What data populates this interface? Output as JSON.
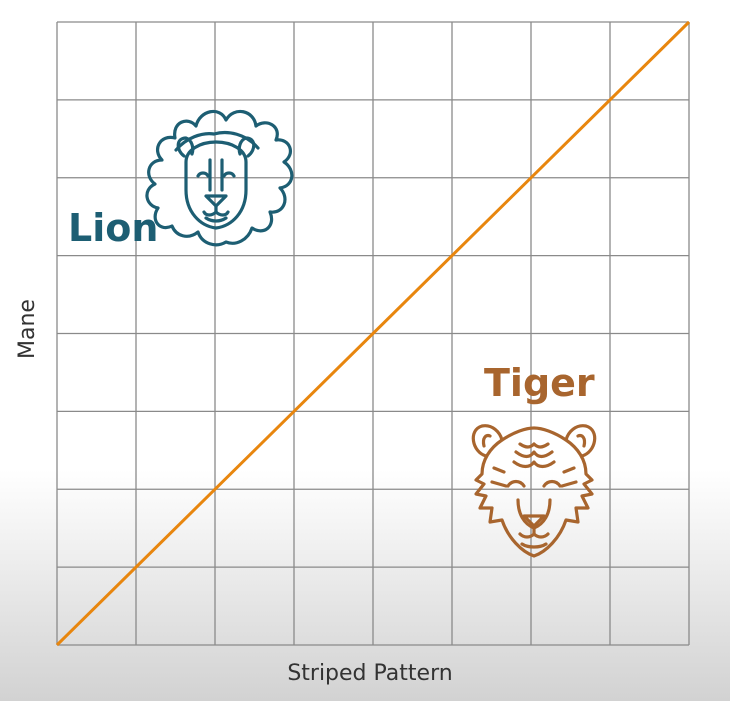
{
  "axes": {
    "x_label": "Striped Pattern",
    "y_label": "Mane"
  },
  "grid": {
    "columns": 8,
    "rows": 8
  },
  "boundary": {
    "from": [
      0,
      0
    ],
    "to": [
      8,
      8
    ],
    "color": "#e8860e"
  },
  "animals": {
    "lion": {
      "label": "Lion",
      "color": "#1d5e73",
      "icon": "lion-face-icon"
    },
    "tiger": {
      "label": "Tiger",
      "color": "#a8652e",
      "icon": "tiger-face-icon"
    }
  },
  "colors": {
    "grid": "#8a8a8a",
    "axis_text": "#333333"
  }
}
